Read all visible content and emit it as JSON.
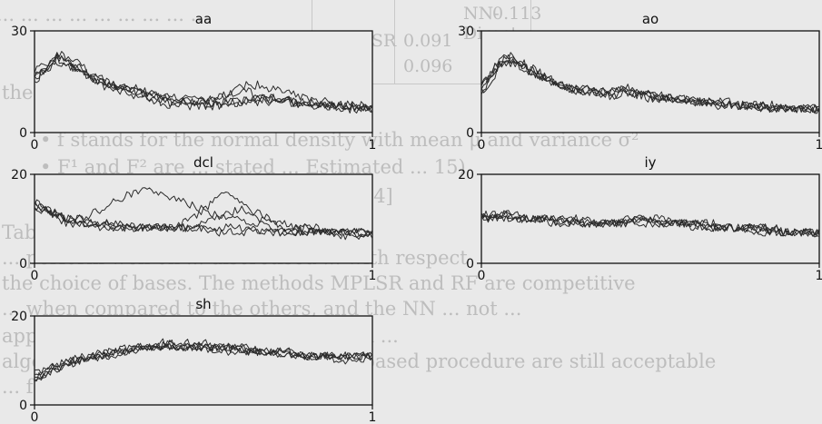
{
  "background_text": {
    "line1": "... ... ... ... ... ... ... ... ...",
    "line2": "the",
    "line3": "• f stands for the normal density with mean μ and variance σ²",
    "line4": "• F¹ and F² are ... stated ... Estimated ... 15)",
    "line5": "• is randomly uniform on [0.1, 0.4]",
    "line6": "Table 1 ... results ... that the ...",
    "line7": "... perform well on ... discretised ... with respect",
    "line8": "the choice of bases. The methods MPLSR and RF are competitive",
    "line9": "... when compared to the others, and the NN ... not ...",
    "line10": "applied to the discretised functions, in ...",
    "line11": "algorithm. The results of the Fourier-based procedure are still acceptable",
    "line12": "... for this data, ... based ... ...",
    "table_rows": [
      {
        "method": "NN-Direct",
        "value": "0.113"
      },
      {
        "method": "MPLSR",
        "value": "0.091"
      },
      {
        "method": "RF",
        "value": "0.096"
      }
    ]
  },
  "colors": {
    "line": "#2c2c2c",
    "axis": "#111111",
    "background": "#e9e9e9"
  },
  "chart_data": [
    {
      "type": "line",
      "title": "aa",
      "xlim": [
        0,
        1
      ],
      "ylim": [
        0,
        30
      ],
      "x_ticks": [
        "0",
        "1"
      ],
      "y_ticks": [
        "0",
        "30"
      ],
      "series": [
        {
          "values": [
            17,
            19,
            23,
            21,
            19,
            17,
            16,
            14,
            13,
            13,
            12,
            11,
            10,
            10,
            10,
            9,
            9,
            9,
            9,
            10,
            10,
            10,
            9,
            9,
            8,
            8,
            8,
            8,
            7,
            7,
            7
          ]
        },
        {
          "values": [
            16,
            18,
            22,
            22,
            20,
            17,
            15,
            14,
            13,
            12,
            11,
            10,
            10,
            10,
            9,
            9,
            10,
            11,
            12,
            12,
            11,
            11,
            10,
            9,
            9,
            9,
            8,
            7,
            7,
            7,
            7
          ]
        },
        {
          "values": [
            15,
            19,
            24,
            21,
            18,
            16,
            14,
            13,
            12,
            11,
            10,
            9,
            8,
            8,
            8,
            8,
            8,
            8,
            9,
            9,
            9,
            9,
            9,
            9,
            9,
            8,
            8,
            8,
            8,
            7,
            7
          ]
        },
        {
          "values": [
            18,
            20,
            21,
            20,
            18,
            16,
            15,
            14,
            13,
            12,
            11,
            11,
            10,
            9,
            9,
            9,
            10,
            11,
            13,
            14,
            14,
            13,
            12,
            11,
            10,
            9,
            9,
            8,
            8,
            8,
            8
          ]
        },
        {
          "values": [
            17,
            18,
            22,
            20,
            18,
            16,
            14,
            13,
            13,
            12,
            11,
            10,
            9,
            9,
            9,
            8,
            8,
            9,
            9,
            10,
            10,
            10,
            10,
            9,
            9,
            8,
            8,
            8,
            7,
            7,
            7
          ]
        }
      ]
    },
    {
      "type": "line",
      "title": "ao",
      "xlim": [
        0,
        1
      ],
      "ylim": [
        0,
        30
      ],
      "x_ticks": [
        "0",
        "1"
      ],
      "y_ticks": [
        "0",
        "30"
      ],
      "series": [
        {
          "values": [
            12,
            16,
            22,
            21,
            20,
            18,
            16,
            14,
            13,
            12,
            12,
            11,
            11,
            12,
            11,
            10,
            10,
            10,
            9,
            9,
            9,
            9,
            8,
            8,
            8,
            8,
            7,
            7,
            7,
            7,
            7
          ]
        },
        {
          "values": [
            13,
            18,
            23,
            22,
            19,
            17,
            15,
            14,
            13,
            13,
            12,
            12,
            12,
            13,
            12,
            11,
            10,
            10,
            10,
            9,
            9,
            8,
            8,
            8,
            8,
            7,
            7,
            7,
            7,
            7,
            7
          ]
        },
        {
          "values": [
            14,
            19,
            21,
            22,
            19,
            17,
            16,
            14,
            13,
            12,
            12,
            11,
            11,
            12,
            11,
            11,
            10,
            10,
            10,
            9,
            9,
            9,
            9,
            8,
            8,
            8,
            8,
            8,
            7,
            7,
            7
          ]
        },
        {
          "values": [
            13,
            17,
            22,
            20,
            19,
            17,
            15,
            14,
            13,
            13,
            12,
            12,
            12,
            13,
            12,
            11,
            11,
            10,
            10,
            9,
            9,
            9,
            8,
            8,
            8,
            8,
            7,
            7,
            7,
            7,
            7
          ]
        },
        {
          "values": [
            12,
            16,
            20,
            21,
            18,
            17,
            15,
            14,
            13,
            12,
            12,
            11,
            12,
            12,
            11,
            10,
            10,
            9,
            9,
            9,
            9,
            8,
            8,
            8,
            8,
            7,
            7,
            7,
            7,
            7,
            7
          ]
        }
      ]
    },
    {
      "type": "line",
      "title": "dcl",
      "xlim": [
        0,
        1
      ],
      "ylim": [
        0,
        20
      ],
      "x_ticks": [
        "0",
        "1"
      ],
      "y_ticks": [
        "0",
        "20"
      ],
      "series": [
        {
          "values": [
            14,
            13,
            11,
            10,
            9,
            9,
            9,
            8,
            8,
            8,
            8,
            8,
            8,
            9,
            10,
            12,
            14,
            16,
            15,
            12,
            10,
            9,
            8,
            8,
            8,
            7,
            7,
            7,
            7,
            7,
            7
          ]
        },
        {
          "values": [
            13,
            12,
            11,
            10,
            10,
            9,
            9,
            9,
            9,
            8,
            8,
            8,
            8,
            8,
            8,
            8,
            8,
            8,
            8,
            8,
            7,
            7,
            7,
            7,
            7,
            7,
            7,
            7,
            7,
            6,
            6
          ]
        },
        {
          "values": [
            12,
            12,
            11,
            10,
            10,
            11,
            12,
            14,
            15,
            16,
            17,
            16,
            15,
            14,
            13,
            12,
            11,
            10,
            10,
            9,
            9,
            8,
            8,
            8,
            7,
            7,
            7,
            7,
            7,
            7,
            7
          ]
        },
        {
          "values": [
            14,
            12,
            11,
            10,
            9,
            9,
            9,
            9,
            8,
            8,
            8,
            8,
            8,
            8,
            8,
            9,
            10,
            11,
            12,
            12,
            11,
            10,
            9,
            8,
            8,
            8,
            7,
            7,
            7,
            7,
            7
          ]
        },
        {
          "values": [
            13,
            12,
            10,
            9,
            9,
            8,
            8,
            8,
            8,
            8,
            8,
            8,
            8,
            8,
            8,
            8,
            7,
            7,
            7,
            7,
            7,
            7,
            7,
            7,
            7,
            7,
            7,
            6,
            6,
            6,
            6
          ]
        }
      ]
    },
    {
      "type": "line",
      "title": "iy",
      "xlim": [
        0,
        1
      ],
      "ylim": [
        0,
        20
      ],
      "x_ticks": [
        "0",
        "1"
      ],
      "y_ticks": [
        "0",
        "20"
      ],
      "series": [
        {
          "values": [
            11,
            11,
            11,
            10,
            10,
            10,
            10,
            10,
            10,
            9,
            9,
            9,
            9,
            10,
            10,
            10,
            9,
            9,
            9,
            9,
            9,
            8,
            8,
            8,
            8,
            8,
            7,
            7,
            7,
            7,
            7
          ]
        },
        {
          "values": [
            10,
            11,
            11,
            11,
            10,
            10,
            10,
            10,
            9,
            9,
            9,
            9,
            9,
            9,
            10,
            10,
            10,
            9,
            9,
            9,
            8,
            8,
            8,
            8,
            8,
            7,
            7,
            7,
            7,
            7,
            6
          ]
        },
        {
          "values": [
            11,
            11,
            10,
            10,
            10,
            10,
            9,
            9,
            9,
            9,
            9,
            9,
            9,
            10,
            10,
            10,
            9,
            9,
            9,
            9,
            9,
            9,
            8,
            8,
            8,
            8,
            8,
            7,
            7,
            7,
            7
          ]
        },
        {
          "values": [
            10,
            10,
            11,
            10,
            10,
            10,
            10,
            10,
            10,
            10,
            9,
            9,
            9,
            9,
            10,
            9,
            9,
            9,
            9,
            8,
            8,
            8,
            8,
            8,
            7,
            7,
            7,
            7,
            7,
            7,
            7
          ]
        },
        {
          "values": [
            11,
            10,
            10,
            10,
            10,
            10,
            10,
            9,
            9,
            9,
            9,
            9,
            9,
            9,
            9,
            9,
            9,
            9,
            9,
            9,
            8,
            8,
            8,
            8,
            8,
            8,
            8,
            7,
            7,
            7,
            7
          ]
        }
      ]
    },
    {
      "type": "line",
      "title": "sh",
      "xlim": [
        0,
        1
      ],
      "ylim": [
        0,
        20
      ],
      "x_ticks": [
        "0",
        "1"
      ],
      "y_ticks": [
        "0",
        "20"
      ],
      "series": [
        {
          "values": [
            6,
            7,
            8,
            9,
            10,
            11,
            11,
            12,
            12,
            13,
            13,
            13,
            13,
            13,
            13,
            14,
            13,
            13,
            13,
            13,
            12,
            12,
            12,
            12,
            11,
            11,
            11,
            11,
            11,
            11,
            11
          ]
        },
        {
          "values": [
            7,
            8,
            9,
            10,
            11,
            11,
            12,
            12,
            13,
            13,
            13,
            14,
            14,
            13,
            13,
            13,
            13,
            13,
            12,
            12,
            12,
            12,
            12,
            11,
            11,
            11,
            11,
            11,
            11,
            11,
            11
          ]
        },
        {
          "values": [
            5,
            7,
            8,
            9,
            10,
            10,
            11,
            11,
            12,
            12,
            13,
            13,
            13,
            14,
            14,
            13,
            13,
            13,
            13,
            12,
            12,
            12,
            11,
            11,
            11,
            11,
            11,
            10,
            10,
            10,
            10
          ]
        },
        {
          "values": [
            6,
            7,
            8,
            9,
            10,
            11,
            11,
            12,
            12,
            12,
            13,
            13,
            13,
            13,
            13,
            13,
            12,
            12,
            12,
            12,
            12,
            12,
            11,
            11,
            11,
            11,
            11,
            11,
            11,
            11,
            11
          ]
        },
        {
          "values": [
            7,
            8,
            9,
            10,
            10,
            11,
            12,
            12,
            12,
            13,
            13,
            13,
            14,
            14,
            13,
            13,
            13,
            13,
            13,
            12,
            12,
            12,
            12,
            12,
            11,
            11,
            11,
            11,
            11,
            11,
            11
          ]
        }
      ]
    }
  ]
}
